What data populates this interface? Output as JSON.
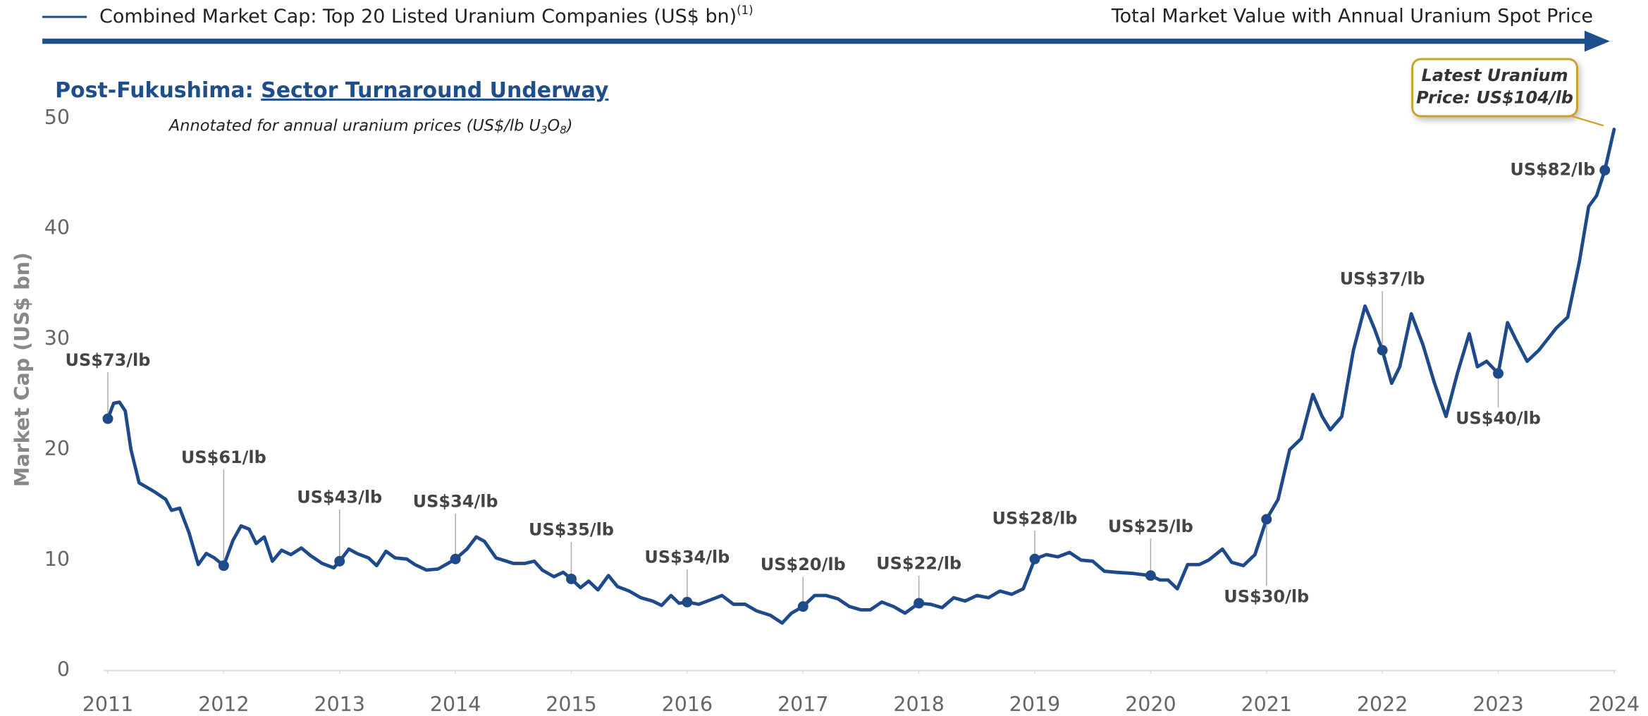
{
  "chart_data": {
    "type": "line",
    "legend_label": "Combined Market Cap: Top 20 Listed Uranium Companies (US$ bn)",
    "legend_footnote": "(1)",
    "header_right": "Total Market Value with Annual Uranium Spot Price",
    "title_prefix": "Post-Fukushima: ",
    "title_emphasis": "Sector Turnaround Underway",
    "subtitle_parts": [
      "Annotated for annual uranium prices (US$/lb U",
      "3",
      "O",
      "8",
      ")"
    ],
    "y_label": "Market Cap (US$ bn)",
    "callout_lines": [
      "Latest Uranium",
      "Price: US$104/lb"
    ],
    "xlim": [
      2011,
      2024
    ],
    "xticks": [
      2011,
      2012,
      2013,
      2014,
      2015,
      2016,
      2017,
      2018,
      2019,
      2020,
      2021,
      2022,
      2023,
      2024
    ],
    "ylim": [
      0,
      50
    ],
    "yticks": [
      0,
      10,
      20,
      30,
      40,
      50
    ],
    "series": [
      {
        "name": "Combined Market Cap: Top 20 Listed Uranium Companies (US$ bn)",
        "color": "#1f4a8a",
        "x": [
          2011.0,
          2011.05,
          2011.1,
          2011.15,
          2011.2,
          2011.27,
          2011.4,
          2011.5,
          2011.55,
          2011.62,
          2011.7,
          2011.78,
          2011.85,
          2011.92,
          2012.0,
          2012.08,
          2012.15,
          2012.22,
          2012.28,
          2012.35,
          2012.42,
          2012.5,
          2012.58,
          2012.67,
          2012.75,
          2012.85,
          2012.95,
          2013.0,
          2013.08,
          2013.15,
          2013.25,
          2013.32,
          2013.4,
          2013.48,
          2013.58,
          2013.65,
          2013.75,
          2013.85,
          2014.0,
          2014.1,
          2014.18,
          2014.25,
          2014.35,
          2014.5,
          2014.6,
          2014.68,
          2014.75,
          2014.85,
          2014.93,
          2015.0,
          2015.08,
          2015.15,
          2015.23,
          2015.32,
          2015.4,
          2015.5,
          2015.6,
          2015.7,
          2015.78,
          2015.86,
          2015.93,
          2016.0,
          2016.1,
          2016.2,
          2016.3,
          2016.4,
          2016.5,
          2016.6,
          2016.72,
          2016.82,
          2016.9,
          2017.0,
          2017.1,
          2017.2,
          2017.3,
          2017.4,
          2017.5,
          2017.58,
          2017.68,
          2017.78,
          2017.88,
          2018.0,
          2018.1,
          2018.2,
          2018.3,
          2018.4,
          2018.5,
          2018.6,
          2018.7,
          2018.8,
          2018.9,
          2019.0,
          2019.1,
          2019.2,
          2019.3,
          2019.4,
          2019.5,
          2019.6,
          2019.7,
          2019.85,
          2020.0,
          2020.08,
          2020.15,
          2020.23,
          2020.32,
          2020.42,
          2020.5,
          2020.62,
          2020.7,
          2020.8,
          2020.9,
          2021.0,
          2021.1,
          2021.2,
          2021.3,
          2021.4,
          2021.48,
          2021.55,
          2021.65,
          2021.75,
          2021.85,
          2021.93,
          2022.0,
          2022.08,
          2022.15,
          2022.25,
          2022.35,
          2022.45,
          2022.55,
          2022.65,
          2022.75,
          2022.82,
          2022.9,
          2023.0,
          2023.08,
          2023.15,
          2023.25,
          2023.35,
          2023.5,
          2023.6,
          2023.7,
          2023.78,
          2023.85,
          2023.92,
          2024.0
        ],
        "values": [
          22.8,
          24.2,
          24.3,
          23.5,
          20,
          17,
          16.2,
          15.5,
          14.5,
          14.7,
          12.5,
          9.6,
          10.6,
          10.2,
          9.5,
          11.8,
          13.1,
          12.8,
          11.5,
          12.1,
          9.9,
          10.9,
          10.5,
          11.1,
          10.4,
          9.7,
          9.3,
          9.9,
          11.0,
          10.6,
          10.2,
          9.5,
          10.8,
          10.2,
          10.1,
          9.6,
          9.1,
          9.2,
          10.1,
          11.0,
          12.1,
          11.7,
          10.2,
          9.7,
          9.7,
          9.9,
          9.1,
          8.5,
          8.9,
          8.3,
          7.5,
          8.1,
          7.3,
          8.6,
          7.6,
          7.2,
          6.6,
          6.3,
          5.9,
          6.8,
          6.1,
          6.2,
          6.0,
          6.4,
          6.8,
          6.0,
          6.0,
          5.4,
          5.0,
          4.3,
          5.2,
          5.8,
          6.8,
          6.8,
          6.5,
          5.8,
          5.5,
          5.5,
          6.2,
          5.8,
          5.2,
          6.1,
          6.0,
          5.7,
          6.6,
          6.3,
          6.8,
          6.6,
          7.2,
          6.9,
          7.4,
          10.1,
          10.5,
          10.3,
          10.7,
          10.0,
          9.9,
          9.0,
          8.9,
          8.8,
          8.6,
          8.2,
          8.2,
          7.4,
          9.6,
          9.6,
          10.0,
          11.0,
          9.8,
          9.5,
          10.5,
          13.7,
          15.5,
          20.0,
          21.0,
          25.0,
          23.0,
          21.8,
          23.0,
          29.0,
          33.0,
          31.0,
          29.0,
          26.0,
          27.5,
          32.3,
          29.5,
          26.0,
          23.0,
          27.0,
          30.5,
          27.5,
          28.0,
          26.9,
          31.5,
          30.0,
          28.0,
          29.0,
          31.0,
          32.0,
          37.0,
          42.0,
          43.0,
          45.3,
          49.0
        ]
      }
    ],
    "annotations": [
      {
        "x": 2011,
        "y": 22.8,
        "label": "US$73/lb",
        "position": "above"
      },
      {
        "x": 2012,
        "y": 9.5,
        "label": "US$61/lb",
        "position": "above"
      },
      {
        "x": 2013,
        "y": 9.9,
        "label": "US$43/lb",
        "position": "above"
      },
      {
        "x": 2014,
        "y": 10.1,
        "label": "US$34/lb",
        "position": "above"
      },
      {
        "x": 2015,
        "y": 8.3,
        "label": "US$35/lb",
        "position": "above"
      },
      {
        "x": 2016,
        "y": 6.2,
        "label": "US$34/lb",
        "position": "above"
      },
      {
        "x": 2017,
        "y": 5.8,
        "label": "US$20/lb",
        "position": "above"
      },
      {
        "x": 2018,
        "y": 6.1,
        "label": "US$22/lb",
        "position": "above"
      },
      {
        "x": 2019,
        "y": 10.1,
        "label": "US$28/lb",
        "position": "above"
      },
      {
        "x": 2020,
        "y": 8.6,
        "label": "US$25/lb",
        "position": "above"
      },
      {
        "x": 2021,
        "y": 13.7,
        "label": "US$30/lb",
        "position": "below"
      },
      {
        "x": 2022,
        "y": 29.0,
        "label": "US$37/lb",
        "position": "above"
      },
      {
        "x": 2023,
        "y": 26.9,
        "label": "US$40/lb",
        "position": "below"
      },
      {
        "x": 2023.92,
        "y": 45.3,
        "label": "US$82/lb",
        "position": "left"
      }
    ]
  }
}
